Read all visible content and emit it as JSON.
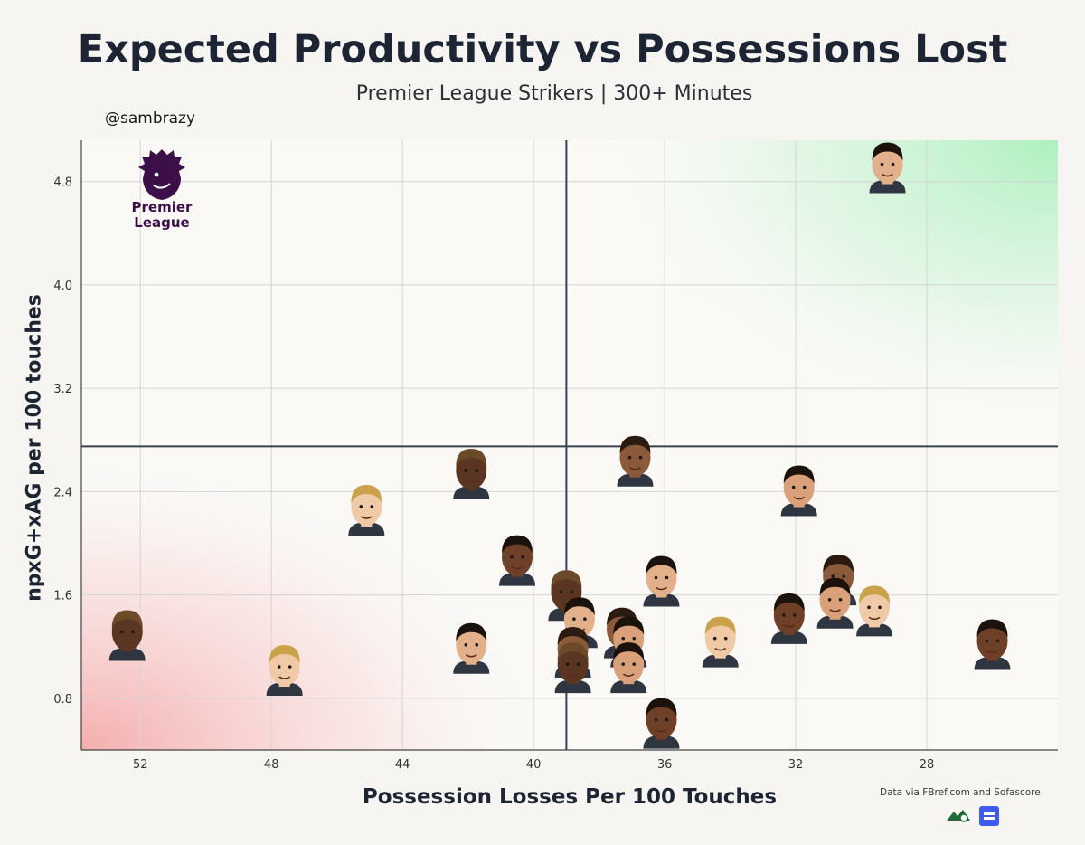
{
  "header": {
    "title": "Expected Productivity vs Possessions Lost",
    "subtitle": "Premier League Strikers | 300+ Minutes",
    "handle": "@sambrazy"
  },
  "branding": {
    "league_logo_icon": "premier-league-lion-logo",
    "league_logo_text_line1": "Premier",
    "league_logo_text_line2": "League",
    "source_text": "Data via FBref.com and Sofascore",
    "source_icons": [
      "fbref-logo-icon",
      "sofascore-logo-icon"
    ]
  },
  "colors": {
    "background": "#f6f5f1",
    "good_zone": "#b6f2c4",
    "bad_zone": "#f6b3b3",
    "reference_line": "#3a4150",
    "grid": "#d4d4d4",
    "text": "#1d2433"
  },
  "chart_data": {
    "type": "scatter",
    "title": "Expected Productivity vs Possessions Lost",
    "subtitle": "Premier League Strikers | 300+ Minutes",
    "xlabel": "Possession Losses Per 100 Touches",
    "ylabel": "npxG+xAG per 100 touches",
    "x_reversed": true,
    "xlim": [
      53.8,
      24.0
    ],
    "ylim": [
      0.4,
      5.12
    ],
    "xticks": [
      52,
      48,
      44,
      40,
      36,
      32,
      28
    ],
    "yticks": [
      0.8,
      1.6,
      2.4,
      3.2,
      4.0,
      4.8
    ],
    "grid": true,
    "reference_lines": {
      "x": 39.0,
      "y": 2.75
    },
    "marker": "player-headshot",
    "points": [
      {
        "x": 29.2,
        "y": 4.92
      },
      {
        "x": 36.9,
        "y": 2.65
      },
      {
        "x": 41.9,
        "y": 2.55
      },
      {
        "x": 31.9,
        "y": 2.42
      },
      {
        "x": 45.1,
        "y": 2.27
      },
      {
        "x": 40.5,
        "y": 1.88
      },
      {
        "x": 36.1,
        "y": 1.72
      },
      {
        "x": 30.7,
        "y": 1.73
      },
      {
        "x": 39.0,
        "y": 1.61
      },
      {
        "x": 30.8,
        "y": 1.55
      },
      {
        "x": 29.6,
        "y": 1.49
      },
      {
        "x": 32.2,
        "y": 1.43
      },
      {
        "x": 38.6,
        "y": 1.4
      },
      {
        "x": 37.3,
        "y": 1.32
      },
      {
        "x": 52.4,
        "y": 1.3
      },
      {
        "x": 37.1,
        "y": 1.25
      },
      {
        "x": 34.3,
        "y": 1.25
      },
      {
        "x": 26.0,
        "y": 1.23
      },
      {
        "x": 41.9,
        "y": 1.2
      },
      {
        "x": 38.8,
        "y": 1.17
      },
      {
        "x": 38.8,
        "y": 1.05
      },
      {
        "x": 37.1,
        "y": 1.05
      },
      {
        "x": 47.6,
        "y": 1.03
      },
      {
        "x": 36.1,
        "y": 0.62
      }
    ]
  }
}
